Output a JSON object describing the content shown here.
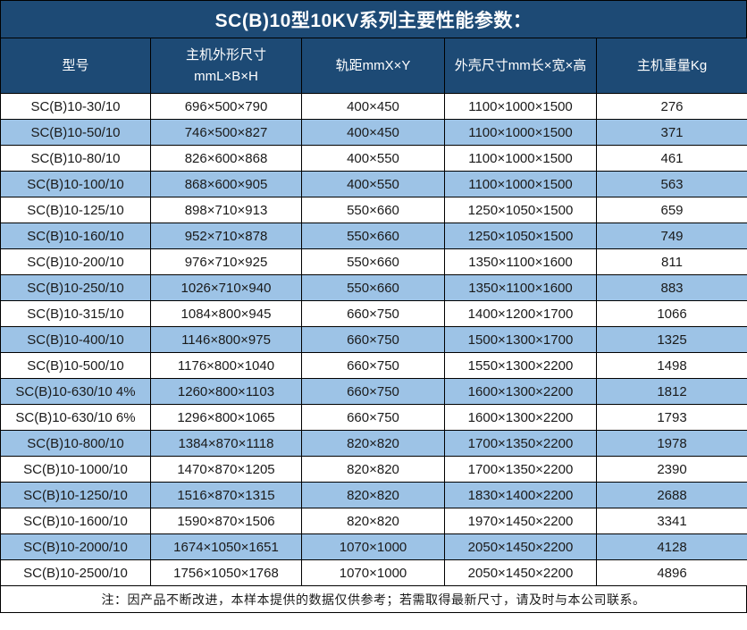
{
  "chart_data": {
    "type": "table",
    "title": "SC(B)10型10KV系列主要性能参数：",
    "columns": [
      "型号",
      "主机外形尺寸\nmmL×B×H",
      "轨距mmX×Y",
      "外壳尺寸mm长×宽×高",
      "主机重量Kg"
    ],
    "rows": [
      [
        "SC(B)10-30/10",
        "696×500×790",
        "400×450",
        "1100×1000×1500",
        "276"
      ],
      [
        "SC(B)10-50/10",
        "746×500×827",
        "400×450",
        "1100×1000×1500",
        "371"
      ],
      [
        "SC(B)10-80/10",
        "826×600×868",
        "400×550",
        "1100×1000×1500",
        "461"
      ],
      [
        "SC(B)10-100/10",
        "868×600×905",
        "400×550",
        "1100×1000×1500",
        "563"
      ],
      [
        "SC(B)10-125/10",
        "898×710×913",
        "550×660",
        "1250×1050×1500",
        "659"
      ],
      [
        "SC(B)10-160/10",
        "952×710×878",
        "550×660",
        "1250×1050×1500",
        "749"
      ],
      [
        "SC(B)10-200/10",
        "976×710×925",
        "550×660",
        "1350×1100×1600",
        "811"
      ],
      [
        "SC(B)10-250/10",
        "1026×710×940",
        "550×660",
        "1350×1100×1600",
        "883"
      ],
      [
        "SC(B)10-315/10",
        "1084×800×945",
        "660×750",
        "1400×1200×1700",
        "1066"
      ],
      [
        "SC(B)10-400/10",
        "1146×800×975",
        "660×750",
        "1500×1300×1700",
        "1325"
      ],
      [
        "SC(B)10-500/10",
        "1176×800×1040",
        "660×750",
        "1550×1300×2200",
        "1498"
      ],
      [
        "SC(B)10-630/10 4%",
        "1260×800×1103",
        "660×750",
        "1600×1300×2200",
        "1812"
      ],
      [
        "SC(B)10-630/10 6%",
        "1296×800×1065",
        "660×750",
        "1600×1300×2200",
        "1793"
      ],
      [
        "SC(B)10-800/10",
        "1384×870×1118",
        "820×820",
        "1700×1350×2200",
        "1978"
      ],
      [
        "SC(B)10-1000/10",
        "1470×870×1205",
        "820×820",
        "1700×1350×2200",
        "2390"
      ],
      [
        "SC(B)10-1250/10",
        "1516×870×1315",
        "820×820",
        "1830×1400×2200",
        "2688"
      ],
      [
        "SC(B)10-1600/10",
        "1590×870×1506",
        "820×820",
        "1970×1450×2200",
        "3341"
      ],
      [
        "SC(B)10-2000/10",
        "1674×1050×1651",
        "1070×1000",
        "2050×1450×2200",
        "4128"
      ],
      [
        "SC(B)10-2500/10",
        "1756×1050×1768",
        "1070×1000",
        "2050×1450×2200",
        "4896"
      ]
    ],
    "note": "注：因产品不断改进，本样本提供的数据仅供参考；若需取得最新尺寸，请及时与本公司联系。",
    "layout": {
      "legend": "none",
      "grid": "on",
      "stripe_pattern": "even rows (2nd, 4th, ...) highlighted blue"
    }
  },
  "colors": {
    "header_bg": "#1D4A75",
    "header_text": "#FFFFFF",
    "stripe_bg": "#9DC3E6",
    "row_bg": "#FFFFFF",
    "body_text": "#1A1A1A",
    "border": "#000000"
  }
}
